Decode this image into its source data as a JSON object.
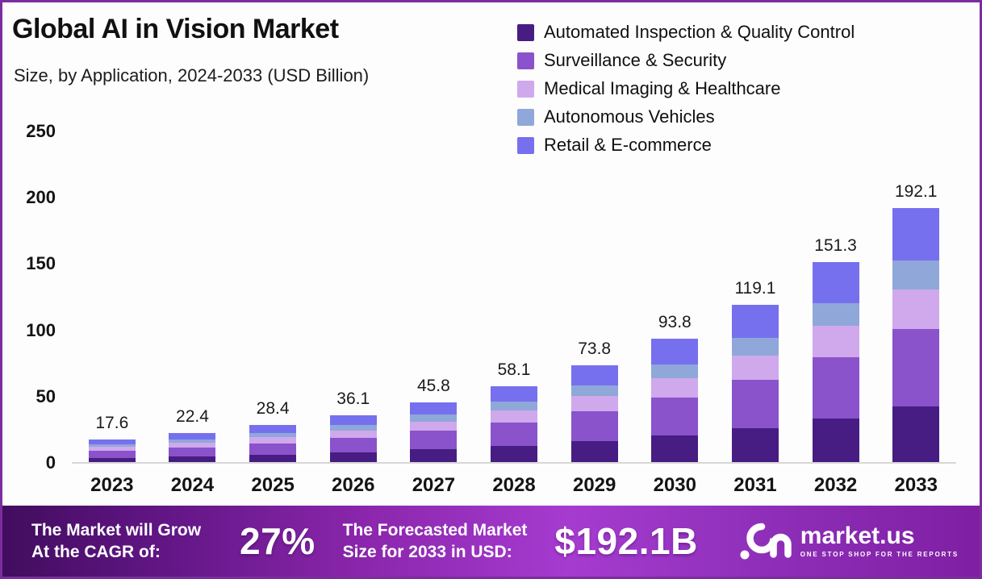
{
  "header": {
    "title": "Global AI in Vision Market",
    "subtitle": "Size, by Application, 2024-2033 (USD Billion)"
  },
  "chart_data": {
    "type": "bar",
    "stacked": true,
    "grid": false,
    "legend_position": "top-right",
    "title": "Global AI in Vision Market",
    "subtitle": "Size, by Application, 2024-2033 (USD Billion)",
    "xlabel": "",
    "ylabel": "USD Billion",
    "ylim": [
      0,
      250
    ],
    "yticks": [
      0,
      50,
      100,
      150,
      200,
      250
    ],
    "categories": [
      "2023",
      "2024",
      "2025",
      "2026",
      "2027",
      "2028",
      "2029",
      "2030",
      "2031",
      "2032",
      "2033"
    ],
    "totals": [
      17.6,
      22.4,
      28.4,
      36.1,
      45.8,
      58.1,
      73.8,
      93.8,
      119.1,
      151.3,
      192.1
    ],
    "series": [
      {
        "name": "Automated Inspection & Quality Control",
        "color": "#471d83",
        "values": [
          3.9,
          5.0,
          6.3,
          8.0,
          10.2,
          12.9,
          16.4,
          20.8,
          26.4,
          33.6,
          42.7
        ]
      },
      {
        "name": "Surveillance & Security",
        "color": "#8a52cb",
        "values": [
          5.3,
          6.8,
          8.6,
          10.9,
          13.9,
          17.6,
          22.4,
          28.4,
          36.1,
          45.9,
          58.2
        ]
      },
      {
        "name": "Medical Imaging & Healthcare",
        "color": "#cfa9ec",
        "values": [
          2.8,
          3.5,
          4.5,
          5.7,
          7.2,
          9.1,
          11.6,
          14.7,
          18.7,
          23.8,
          30.2
        ]
      },
      {
        "name": "Autonomous Vehicles",
        "color": "#90a7da",
        "values": [
          2.0,
          2.5,
          3.2,
          4.0,
          5.1,
          6.5,
          8.3,
          10.5,
          13.3,
          16.9,
          21.5
        ]
      },
      {
        "name": "Retail & E-commerce",
        "color": "#7670ee",
        "values": [
          3.6,
          4.6,
          5.8,
          7.5,
          9.4,
          12.0,
          15.1,
          19.4,
          24.6,
          31.1,
          39.5
        ]
      }
    ]
  },
  "footer": {
    "cagr_line1": "The Market will Grow",
    "cagr_line2": "At the CAGR of:",
    "cagr_value": "27%",
    "forecast_line1": "The Forecasted Market",
    "forecast_line2": "Size for 2033 in USD:",
    "forecast_value": "$192.1B",
    "brand": "market.us",
    "brand_tagline": "ONE STOP SHOP FOR THE REPORTS"
  }
}
